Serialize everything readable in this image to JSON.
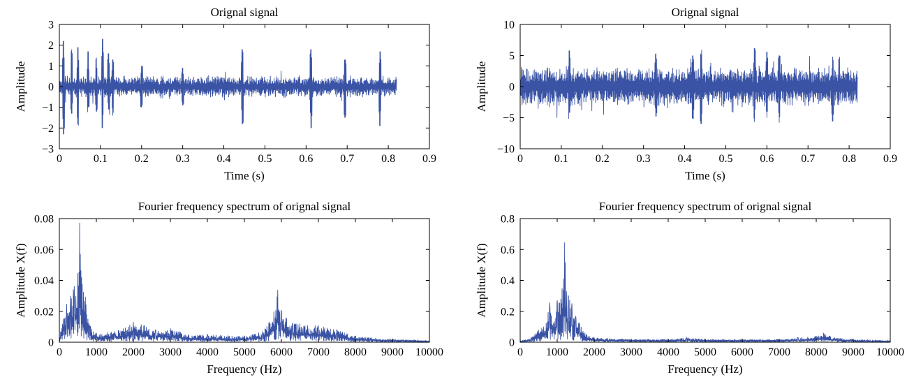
{
  "figure": {
    "line_color": "#3a53a4"
  },
  "chart_data": [
    {
      "type": "line",
      "title": "Orignal signal",
      "xlabel": "Time (s)",
      "ylabel": "Amplitude",
      "xlim": [
        0,
        0.9
      ],
      "ylim": [
        -3,
        3
      ],
      "xticks": [
        0,
        0.1,
        0.2,
        0.3,
        0.4,
        0.5,
        0.6,
        0.7,
        0.8,
        0.9
      ],
      "xtick_labels": [
        "0",
        "0.1",
        "0.2",
        "0.3",
        "0.4",
        "0.5",
        "0.6",
        "0.7",
        "0.8",
        "0.9"
      ],
      "yticks": [
        -3,
        -2,
        -1,
        0,
        1,
        2,
        3
      ],
      "ytick_labels": [
        "−3",
        "−2",
        "−1",
        "0",
        "1",
        "2",
        "3"
      ],
      "series": [
        {
          "x_range": [
            0,
            0.82
          ],
          "band": 0.55,
          "spikes": [
            {
              "x": 0.01,
              "max": 2.2,
              "min": -2.3
            },
            {
              "x": 0.03,
              "max": 1.8,
              "min": -1.3
            },
            {
              "x": 0.045,
              "max": 1.9,
              "min": -1.5
            },
            {
              "x": 0.07,
              "max": 1.7,
              "min": -1.0
            },
            {
              "x": 0.09,
              "max": 1.4,
              "min": -1.2
            },
            {
              "x": 0.105,
              "max": 2.3,
              "min": -2.0
            },
            {
              "x": 0.12,
              "max": 1.6,
              "min": -1.1
            },
            {
              "x": 0.13,
              "max": 1.3,
              "min": -1.4
            },
            {
              "x": 0.2,
              "max": 1.0,
              "min": -1.0
            },
            {
              "x": 0.3,
              "max": 0.9,
              "min": -0.9
            },
            {
              "x": 0.445,
              "max": 1.8,
              "min": -1.8
            },
            {
              "x": 0.612,
              "max": 1.8,
              "min": -2.0
            },
            {
              "x": 0.695,
              "max": 1.3,
              "min": -1.5
            },
            {
              "x": 0.78,
              "max": 1.7,
              "min": -1.9
            }
          ]
        }
      ]
    },
    {
      "type": "line",
      "title": "Orignal signal",
      "xlabel": "Time (s)",
      "ylabel": "Amplitude",
      "xlim": [
        0,
        0.9
      ],
      "ylim": [
        -10,
        10
      ],
      "xticks": [
        0,
        0.1,
        0.2,
        0.3,
        0.4,
        0.5,
        0.6,
        0.7,
        0.8,
        0.9
      ],
      "xtick_labels": [
        "0",
        "0.1",
        "0.2",
        "0.3",
        "0.4",
        "0.5",
        "0.6",
        "0.7",
        "0.8",
        "0.9"
      ],
      "yticks": [
        -10,
        -5,
        0,
        5,
        10
      ],
      "ytick_labels": [
        "−10",
        "−5",
        "0",
        "5",
        "10"
      ],
      "series": [
        {
          "x_range": [
            0,
            0.82
          ],
          "band": 3.5,
          "spikes": [
            {
              "x": 0.12,
              "max": 5.8,
              "min": -4.2
            },
            {
              "x": 0.33,
              "max": 5.3,
              "min": -4.8
            },
            {
              "x": 0.42,
              "max": 5.0,
              "min": -5.2
            },
            {
              "x": 0.44,
              "max": 5.2,
              "min": -6.0
            },
            {
              "x": 0.57,
              "max": 6.2,
              "min": -5.7
            },
            {
              "x": 0.6,
              "max": 5.6,
              "min": -5.0
            },
            {
              "x": 0.63,
              "max": 5.0,
              "min": -5.8
            },
            {
              "x": 0.76,
              "max": 4.8,
              "min": -5.6
            }
          ]
        }
      ]
    },
    {
      "type": "line",
      "title": "Fourier frequency spectrum of orignal signal",
      "xlabel": "Frequency (Hz)",
      "ylabel": "Amplitude X(f)",
      "xlim": [
        0,
        10000
      ],
      "ylim": [
        0,
        0.08
      ],
      "xticks": [
        0,
        1000,
        2000,
        3000,
        4000,
        5000,
        6000,
        7000,
        8000,
        9000,
        10000
      ],
      "xtick_labels": [
        "0",
        "1000",
        "2000",
        "3000",
        "4000",
        "5000",
        "6000",
        "7000",
        "8000",
        "9000",
        "10000"
      ],
      "yticks": [
        0,
        0.02,
        0.04,
        0.06,
        0.08
      ],
      "ytick_labels": [
        "0",
        "0.02",
        "0.04",
        "0.06",
        "0.08"
      ],
      "series": [
        {
          "envelope": [
            [
              0,
              0.003
            ],
            [
              100,
              0.015
            ],
            [
              200,
              0.025
            ],
            [
              300,
              0.03
            ],
            [
              400,
              0.036
            ],
            [
              500,
              0.045
            ],
            [
              550,
              0.078
            ],
            [
              600,
              0.042
            ],
            [
              700,
              0.03
            ],
            [
              800,
              0.012
            ],
            [
              1000,
              0.006
            ],
            [
              1500,
              0.007
            ],
            [
              2000,
              0.013
            ],
            [
              2300,
              0.011
            ],
            [
              2600,
              0.008
            ],
            [
              3000,
              0.009
            ],
            [
              3500,
              0.005
            ],
            [
              4000,
              0.005
            ],
            [
              5000,
              0.004
            ],
            [
              5500,
              0.007
            ],
            [
              5800,
              0.02
            ],
            [
              5900,
              0.034
            ],
            [
              6000,
              0.02
            ],
            [
              6300,
              0.012
            ],
            [
              6500,
              0.012
            ],
            [
              7000,
              0.011
            ],
            [
              7500,
              0.008
            ],
            [
              8000,
              0.004
            ],
            [
              9000,
              0.002
            ],
            [
              10000,
              0.001
            ]
          ]
        }
      ]
    },
    {
      "type": "line",
      "title": "Fourier frequency spectrum of orignal signal",
      "xlabel": "Frequency (Hz)",
      "ylabel": "Amplitude X(f)",
      "xlim": [
        0,
        10000
      ],
      "ylim": [
        0,
        0.8
      ],
      "xticks": [
        0,
        1000,
        2000,
        3000,
        4000,
        5000,
        6000,
        7000,
        8000,
        9000,
        10000
      ],
      "xtick_labels": [
        "0",
        "1000",
        "2000",
        "3000",
        "4000",
        "5000",
        "6000",
        "7000",
        "8000",
        "9000",
        "10000"
      ],
      "yticks": [
        0,
        0.2,
        0.4,
        0.6,
        0.8
      ],
      "ytick_labels": [
        "0",
        "0.2",
        "0.4",
        "0.6",
        "0.8"
      ],
      "series": [
        {
          "envelope": [
            [
              0,
              0.01
            ],
            [
              300,
              0.03
            ],
            [
              500,
              0.08
            ],
            [
              700,
              0.12
            ],
            [
              800,
              0.26
            ],
            [
              900,
              0.12
            ],
            [
              1000,
              0.27
            ],
            [
              1100,
              0.28
            ],
            [
              1200,
              0.65
            ],
            [
              1250,
              0.33
            ],
            [
              1300,
              0.3
            ],
            [
              1400,
              0.25
            ],
            [
              1500,
              0.17
            ],
            [
              1600,
              0.12
            ],
            [
              1800,
              0.05
            ],
            [
              2000,
              0.03
            ],
            [
              3000,
              0.02
            ],
            [
              4000,
              0.02
            ],
            [
              4500,
              0.03
            ],
            [
              5000,
              0.02
            ],
            [
              6000,
              0.02
            ],
            [
              7000,
              0.02
            ],
            [
              7500,
              0.03
            ],
            [
              8000,
              0.04
            ],
            [
              8200,
              0.06
            ],
            [
              8500,
              0.03
            ],
            [
              9000,
              0.02
            ],
            [
              10000,
              0.01
            ]
          ]
        }
      ]
    }
  ]
}
